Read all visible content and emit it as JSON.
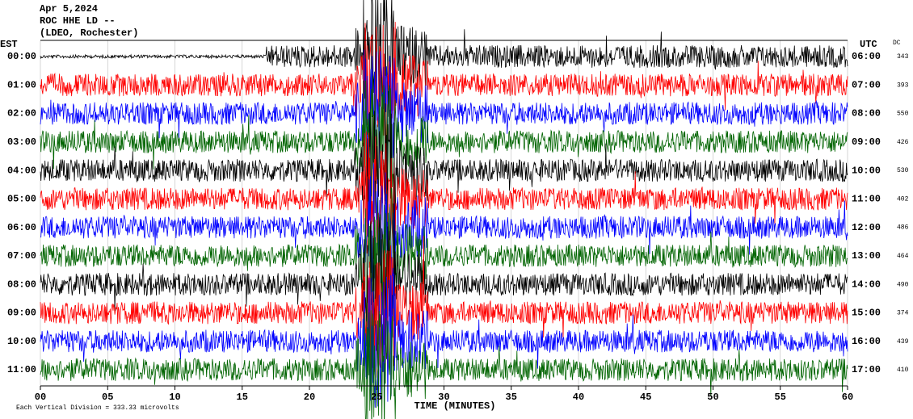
{
  "chart_data": {
    "type": "helicorder",
    "title_lines": [
      "Apr 5,2024",
      "ROC HHE LD --",
      "(LDEO, Rochester)"
    ],
    "left_axis_label": "EST",
    "right_axis_label": "UTC",
    "dc_label": "DC",
    "x_label": "TIME (MINUTES)",
    "note": "Each Vertical Division = 333.33 microvolts",
    "xlim": [
      0,
      60
    ],
    "xticks": [
      {
        "value": 0,
        "label": "00"
      },
      {
        "value": 5,
        "label": "05"
      },
      10,
      15,
      20,
      25,
      30,
      35,
      40,
      45,
      50,
      55,
      60
    ],
    "grid": true,
    "rows": [
      {
        "est": "00:00",
        "utc": "06:00",
        "dc": 343,
        "color": "#000000"
      },
      {
        "est": "01:00",
        "utc": "07:00",
        "dc": 393,
        "color": "#ff0000"
      },
      {
        "est": "02:00",
        "utc": "08:00",
        "dc": 550,
        "color": "#0000ff"
      },
      {
        "est": "03:00",
        "utc": "09:00",
        "dc": 426,
        "color": "#006400"
      },
      {
        "est": "04:00",
        "utc": "10:00",
        "dc": 530,
        "color": "#000000"
      },
      {
        "est": "05:00",
        "utc": "11:00",
        "dc": 402,
        "color": "#ff0000"
      },
      {
        "est": "06:00",
        "utc": "12:00",
        "dc": 486,
        "color": "#0000ff"
      },
      {
        "est": "07:00",
        "utc": "13:00",
        "dc": 464,
        "color": "#006400"
      },
      {
        "est": "08:00",
        "utc": "14:00",
        "dc": 490,
        "color": "#000000"
      },
      {
        "est": "09:00",
        "utc": "15:00",
        "dc": 374,
        "color": "#ff0000"
      },
      {
        "est": "10:00",
        "utc": "16:00",
        "dc": 439,
        "color": "#0000ff"
      },
      {
        "est": "11:00",
        "utc": "17:00",
        "dc": 410,
        "color": "#006400"
      }
    ]
  }
}
